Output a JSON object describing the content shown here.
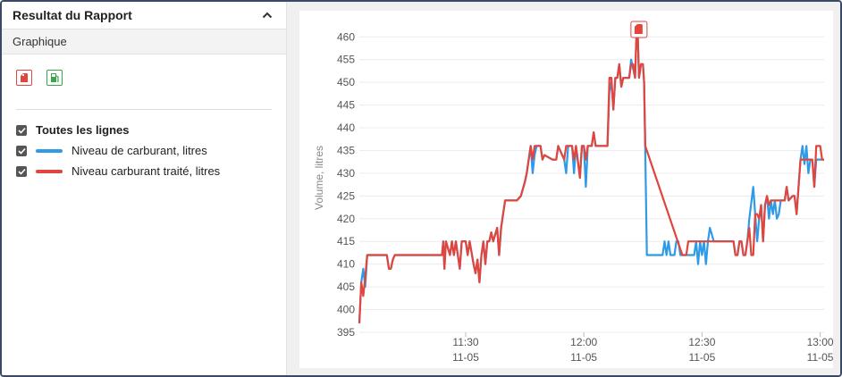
{
  "panel": {
    "title": "Resultat du Rapport",
    "subtitle": "Graphique",
    "icons": [
      "fuel-drain-icon",
      "fuel-station-icon"
    ],
    "legend": {
      "all_label": "Toutes les lignes",
      "items": [
        {
          "label": "Niveau de carburant, litres",
          "color": "#2f9be6"
        },
        {
          "label": "Niveau carburant traité, litres",
          "color": "#e0463e"
        }
      ]
    }
  },
  "chart_data": {
    "type": "line",
    "ylabel": "Volume, litres",
    "ylim": [
      395,
      463
    ],
    "y_ticks": [
      395,
      400,
      405,
      410,
      415,
      420,
      425,
      430,
      435,
      440,
      445,
      450,
      455,
      460
    ],
    "x_ticks": [
      {
        "t": 90,
        "time": "11:30",
        "date": "11-05"
      },
      {
        "t": 120,
        "time": "12:00",
        "date": "11-05"
      },
      {
        "t": 150,
        "time": "12:30",
        "date": "11-05"
      },
      {
        "t": 180,
        "time": "13:00",
        "date": "11-05"
      }
    ],
    "xlim": [
      63,
      181
    ],
    "event_marker": {
      "t": 134,
      "icon": "fuel-drain-icon"
    },
    "series": [
      {
        "name": "Niveau de carburant, litres",
        "color": "#2f9be6",
        "points": [
          [
            63,
            397
          ],
          [
            63.5,
            406
          ],
          [
            64,
            409
          ],
          [
            64.5,
            405
          ],
          [
            65,
            412
          ],
          [
            70,
            412
          ],
          [
            70.5,
            409
          ],
          [
            71,
            409
          ],
          [
            71.5,
            411
          ],
          [
            72,
            412
          ],
          [
            75,
            412
          ],
          [
            76,
            412
          ],
          [
            83,
            412
          ],
          [
            84,
            412
          ],
          [
            84.3,
            415
          ],
          [
            84.6,
            409
          ],
          [
            85,
            415
          ],
          [
            86,
            412
          ],
          [
            86.5,
            415
          ],
          [
            87,
            412
          ],
          [
            87.5,
            415
          ],
          [
            88,
            412
          ],
          [
            88.5,
            409
          ],
          [
            89,
            415
          ],
          [
            90,
            415
          ],
          [
            90.5,
            412
          ],
          [
            91,
            415
          ],
          [
            92,
            410
          ],
          [
            92.5,
            408
          ],
          [
            93,
            411
          ],
          [
            93.5,
            406
          ],
          [
            94,
            412
          ],
          [
            94.5,
            415
          ],
          [
            95,
            410
          ],
          [
            95.5,
            415
          ],
          [
            96,
            415
          ],
          [
            96.5,
            417
          ],
          [
            97,
            415
          ],
          [
            98,
            418
          ],
          [
            98.5,
            412
          ],
          [
            99,
            418
          ],
          [
            100,
            424
          ],
          [
            103,
            424
          ],
          [
            104,
            425
          ],
          [
            105,
            428
          ],
          [
            105.5,
            430
          ],
          [
            106,
            433
          ],
          [
            106.5,
            436
          ],
          [
            107,
            430
          ],
          [
            107.5,
            434
          ],
          [
            108,
            436
          ],
          [
            109,
            436
          ],
          [
            109.5,
            433
          ],
          [
            110,
            434
          ],
          [
            112,
            433
          ],
          [
            113,
            433
          ],
          [
            113.5,
            436
          ],
          [
            114,
            435
          ],
          [
            115,
            433
          ],
          [
            115.5,
            430
          ],
          [
            116,
            436
          ],
          [
            117,
            436
          ],
          [
            117.5,
            430
          ],
          [
            118,
            436
          ],
          [
            119,
            429
          ],
          [
            119.5,
            436
          ],
          [
            120,
            436
          ],
          [
            120.5,
            427
          ],
          [
            121,
            436
          ],
          [
            122,
            436
          ],
          [
            122.5,
            439
          ],
          [
            123,
            436
          ],
          [
            126,
            436
          ],
          [
            126.5,
            448
          ],
          [
            127,
            450
          ],
          [
            127.5,
            444
          ],
          [
            128,
            451
          ],
          [
            128.5,
            451
          ],
          [
            129,
            454
          ],
          [
            129.5,
            449
          ],
          [
            130,
            451
          ],
          [
            131,
            451
          ],
          [
            131.5,
            451
          ],
          [
            132,
            455
          ],
          [
            132.5,
            453
          ],
          [
            133,
            451
          ],
          [
            133.3,
            459
          ],
          [
            133.6,
            463
          ],
          [
            134,
            451
          ],
          [
            134.5,
            454
          ],
          [
            135,
            454
          ],
          [
            135.3,
            450
          ],
          [
            135.6,
            435
          ],
          [
            136,
            412
          ],
          [
            140,
            412
          ],
          [
            140.5,
            415
          ],
          [
            141,
            412
          ],
          [
            141.5,
            415
          ],
          [
            142,
            412
          ],
          [
            143,
            412
          ],
          [
            143.5,
            415
          ],
          [
            144,
            415
          ],
          [
            144.5,
            412
          ],
          [
            145,
            412
          ],
          [
            146,
            412
          ],
          [
            148,
            412
          ],
          [
            148.5,
            415
          ],
          [
            149,
            410
          ],
          [
            149.5,
            415
          ],
          [
            150,
            412
          ],
          [
            150.5,
            415
          ],
          [
            151,
            410
          ],
          [
            151.5,
            415
          ],
          [
            152,
            418
          ],
          [
            153,
            415
          ],
          [
            155,
            415
          ],
          [
            156,
            415
          ],
          [
            157,
            415
          ],
          [
            158,
            415
          ],
          [
            158.5,
            412
          ],
          [
            159,
            412
          ],
          [
            159.5,
            415
          ],
          [
            160,
            415
          ],
          [
            160.5,
            412
          ],
          [
            161,
            412
          ],
          [
            161.5,
            415
          ],
          [
            162,
            420
          ],
          [
            163,
            427
          ],
          [
            163.5,
            421
          ],
          [
            164,
            415
          ],
          [
            164.5,
            420
          ],
          [
            165,
            423
          ],
          [
            165.5,
            415
          ],
          [
            166,
            423
          ],
          [
            166.5,
            425
          ],
          [
            167,
            420
          ],
          [
            167.5,
            424
          ],
          [
            168,
            421
          ],
          [
            168.5,
            424
          ],
          [
            169,
            420
          ],
          [
            169.5,
            421
          ],
          [
            170,
            424
          ],
          [
            171,
            424
          ],
          [
            171.5,
            427
          ],
          [
            172,
            424
          ],
          [
            173,
            425
          ],
          [
            173.5,
            425
          ],
          [
            174,
            421
          ],
          [
            174.5,
            427
          ],
          [
            175,
            433
          ],
          [
            175.5,
            436
          ],
          [
            176,
            432
          ],
          [
            176.5,
            436
          ],
          [
            177,
            430
          ],
          [
            177.5,
            433
          ],
          [
            178,
            433
          ],
          [
            178.5,
            427
          ],
          [
            179,
            433
          ],
          [
            180,
            433
          ],
          [
            181,
            433
          ]
        ]
      },
      {
        "name": "Niveau carburant traité, litres",
        "color": "#e0463e",
        "points": [
          [
            63,
            397
          ],
          [
            63.5,
            406
          ],
          [
            64,
            403
          ],
          [
            64.5,
            407
          ],
          [
            65,
            412
          ],
          [
            70,
            412
          ],
          [
            70.5,
            409
          ],
          [
            71,
            409
          ],
          [
            71.5,
            411
          ],
          [
            72,
            412
          ],
          [
            75,
            412
          ],
          [
            76,
            412
          ],
          [
            83,
            412
          ],
          [
            84,
            412
          ],
          [
            84.3,
            415
          ],
          [
            84.6,
            409
          ],
          [
            85,
            415
          ],
          [
            86,
            412
          ],
          [
            86.5,
            415
          ],
          [
            87,
            412
          ],
          [
            87.5,
            415
          ],
          [
            88,
            412
          ],
          [
            88.5,
            409
          ],
          [
            89,
            415
          ],
          [
            90,
            415
          ],
          [
            90.5,
            412
          ],
          [
            91,
            415
          ],
          [
            92,
            410
          ],
          [
            92.5,
            408
          ],
          [
            93,
            411
          ],
          [
            93.5,
            406
          ],
          [
            94,
            412
          ],
          [
            94.5,
            415
          ],
          [
            95,
            410
          ],
          [
            95.5,
            415
          ],
          [
            96,
            415
          ],
          [
            96.5,
            417
          ],
          [
            97,
            415
          ],
          [
            98,
            418
          ],
          [
            98.5,
            412
          ],
          [
            99,
            418
          ],
          [
            100,
            424
          ],
          [
            103,
            424
          ],
          [
            104,
            425
          ],
          [
            105,
            428
          ],
          [
            105.5,
            430
          ],
          [
            106,
            433
          ],
          [
            106.5,
            436
          ],
          [
            107,
            433
          ],
          [
            107.5,
            436
          ],
          [
            108,
            436
          ],
          [
            109,
            436
          ],
          [
            109.5,
            433
          ],
          [
            110,
            434
          ],
          [
            112,
            433
          ],
          [
            113,
            433
          ],
          [
            113.5,
            436
          ],
          [
            114,
            435
          ],
          [
            115,
            433
          ],
          [
            115.5,
            436
          ],
          [
            116,
            436
          ],
          [
            117,
            436
          ],
          [
            117.5,
            433
          ],
          [
            118,
            436
          ],
          [
            119,
            429
          ],
          [
            119.5,
            436
          ],
          [
            120,
            436
          ],
          [
            120.5,
            433
          ],
          [
            121,
            436
          ],
          [
            122,
            436
          ],
          [
            122.5,
            439
          ],
          [
            123,
            436
          ],
          [
            126,
            436
          ],
          [
            126.5,
            451
          ],
          [
            127,
            451
          ],
          [
            127.5,
            444
          ],
          [
            128,
            451
          ],
          [
            128.5,
            451
          ],
          [
            129,
            454
          ],
          [
            129.5,
            449
          ],
          [
            130,
            451
          ],
          [
            131,
            451
          ],
          [
            131.5,
            451
          ],
          [
            132,
            454
          ],
          [
            132.5,
            454
          ],
          [
            133,
            451
          ],
          [
            133.3,
            459
          ],
          [
            133.6,
            463
          ],
          [
            134,
            451
          ],
          [
            134.5,
            454
          ],
          [
            135,
            454
          ],
          [
            135.3,
            450
          ],
          [
            135.6,
            436
          ],
          [
            145,
            412
          ],
          [
            146,
            412
          ],
          [
            146.5,
            415
          ],
          [
            147,
            415
          ],
          [
            148,
            415
          ],
          [
            149,
            415
          ],
          [
            150,
            415
          ],
          [
            151,
            415
          ],
          [
            152,
            415
          ],
          [
            153,
            415
          ],
          [
            155,
            415
          ],
          [
            156,
            415
          ],
          [
            157,
            415
          ],
          [
            158,
            415
          ],
          [
            158.5,
            412
          ],
          [
            159,
            412
          ],
          [
            159.5,
            415
          ],
          [
            160,
            415
          ],
          [
            160.5,
            412
          ],
          [
            161,
            412
          ],
          [
            161.5,
            415
          ],
          [
            162,
            418
          ],
          [
            162.5,
            412
          ],
          [
            163,
            412
          ],
          [
            163.5,
            421
          ],
          [
            164,
            421
          ],
          [
            164.5,
            420
          ],
          [
            165,
            423
          ],
          [
            165.5,
            415
          ],
          [
            166,
            423
          ],
          [
            166.5,
            425
          ],
          [
            167,
            423
          ],
          [
            167.5,
            424
          ],
          [
            168,
            424
          ],
          [
            168.5,
            424
          ],
          [
            169,
            424
          ],
          [
            169.5,
            424
          ],
          [
            170,
            424
          ],
          [
            171,
            424
          ],
          [
            171.5,
            427
          ],
          [
            172,
            424
          ],
          [
            173,
            425
          ],
          [
            173.5,
            425
          ],
          [
            174,
            421
          ],
          [
            174.5,
            427
          ],
          [
            175,
            433
          ],
          [
            176,
            433
          ],
          [
            176.5,
            433
          ],
          [
            177,
            433
          ],
          [
            177.5,
            433
          ],
          [
            178,
            433
          ],
          [
            178.5,
            427
          ],
          [
            179,
            436
          ],
          [
            180,
            436
          ],
          [
            180.5,
            433
          ],
          [
            181,
            433
          ]
        ]
      }
    ]
  }
}
